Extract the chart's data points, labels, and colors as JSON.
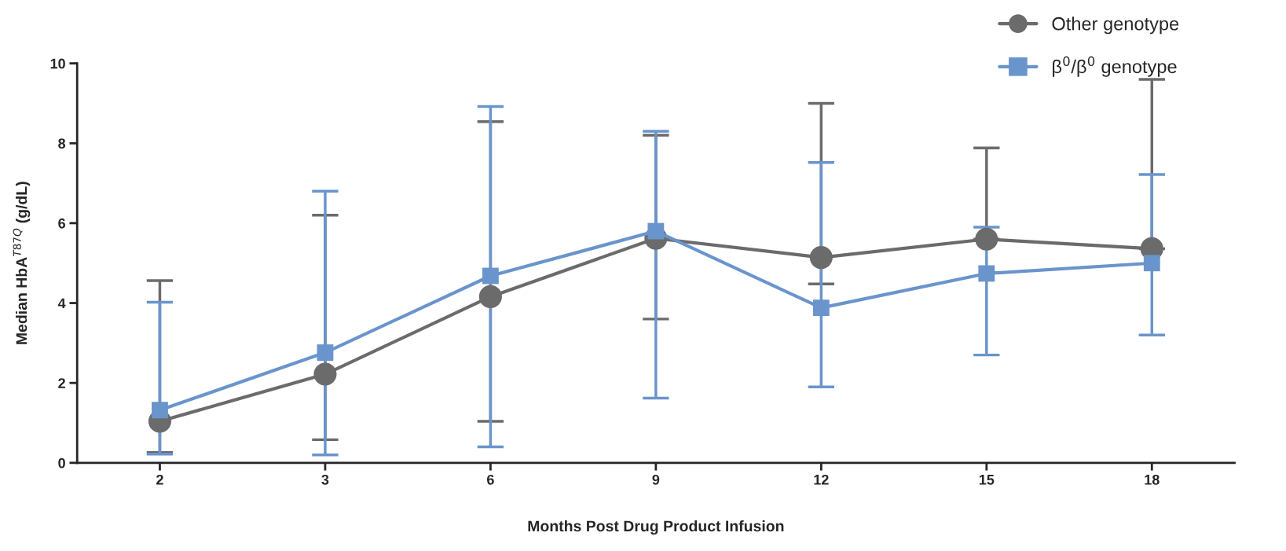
{
  "chart_data": {
    "type": "line",
    "xlabel": "Months Post Drug Product Infusion",
    "ylabel": "Median HbA$^{T87Q}$ (g/dL)",
    "categories": [
      "2",
      "3",
      "6",
      "9",
      "12",
      "15",
      "18"
    ],
    "ylim": [
      0,
      10
    ],
    "yticks": [
      0,
      2,
      4,
      6,
      8,
      10
    ],
    "grid": false,
    "legend": "top right",
    "series": [
      {
        "name": "Other genotype",
        "color": "#6b6b6b",
        "marker": "circle",
        "values": [
          1.04,
          2.22,
          4.16,
          5.62,
          5.14,
          5.6,
          5.36
        ],
        "errors": [
          [
            0.26,
            4.56
          ],
          [
            0.58,
            6.2
          ],
          [
            1.04,
            8.54
          ],
          [
            3.6,
            8.2
          ],
          [
            4.48,
            9.0
          ],
          [
            5.6,
            7.88
          ],
          [
            5.36,
            9.6
          ]
        ]
      },
      {
        "name": "β$^{0}$/β$^{0}$ genotype",
        "color": "#6a94cc",
        "marker": "square",
        "values": [
          1.32,
          2.76,
          4.68,
          5.8,
          3.88,
          4.74,
          5.0
        ],
        "errors": [
          [
            0.22,
            4.02
          ],
          [
            0.2,
            6.8
          ],
          [
            0.4,
            8.92
          ],
          [
            1.62,
            8.3
          ],
          [
            1.9,
            7.52
          ],
          [
            2.7,
            5.9
          ],
          [
            3.2,
            7.22
          ]
        ]
      }
    ]
  }
}
